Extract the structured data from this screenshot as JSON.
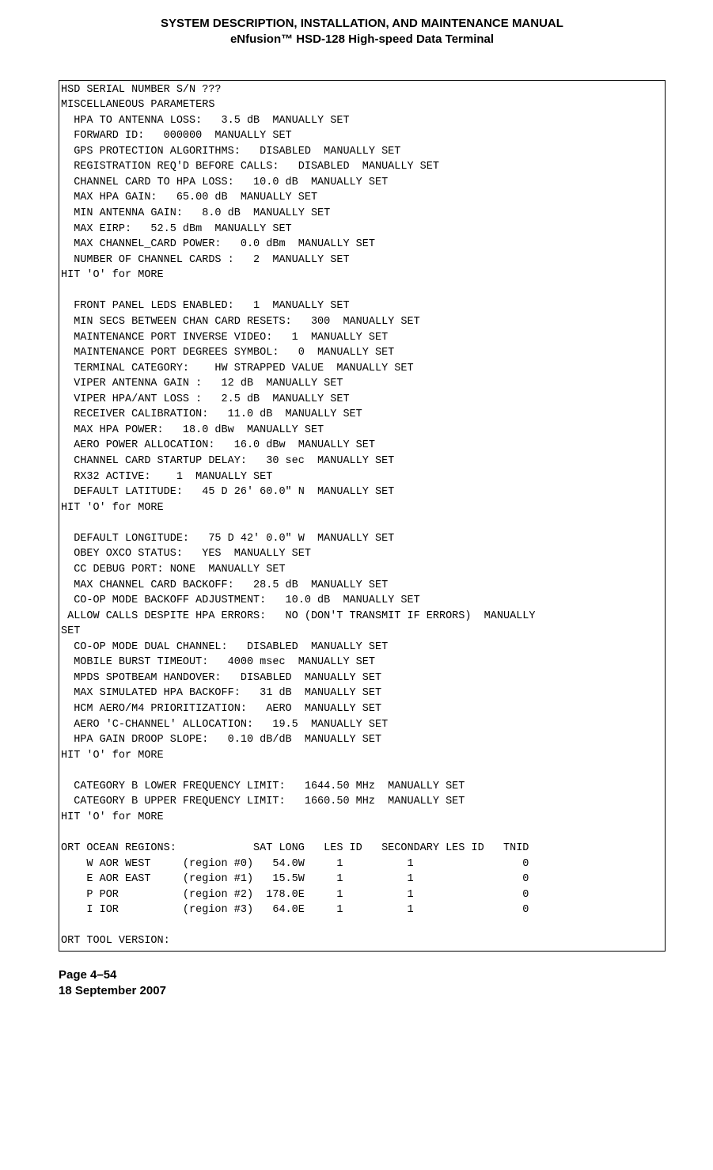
{
  "header": {
    "line1": "SYSTEM DESCRIPTION, INSTALLATION, AND MAINTENANCE MANUAL",
    "line2": "eNfusion™ HSD-128 High-speed Data Terminal"
  },
  "terminal": {
    "intro": [
      "HSD SERIAL NUMBER S/N ???",
      "MISCELLANEOUS PARAMETERS"
    ],
    "block1": [
      {
        "label": "HPA TO ANTENNA LOSS:",
        "value": "3.5 dB",
        "status": "MANUALLY SET"
      },
      {
        "label": "FORWARD ID:",
        "value": "000000",
        "status": "MANUALLY SET"
      },
      {
        "label": "GPS PROTECTION ALGORITHMS:",
        "value": "DISABLED",
        "status": "MANUALLY SET"
      },
      {
        "label": "REGISTRATION REQ'D BEFORE CALLS:",
        "value": "DISABLED",
        "status": "MANUALLY SET"
      },
      {
        "label": "CHANNEL CARD TO HPA LOSS:",
        "value": "10.0 dB",
        "status": "MANUALLY SET"
      },
      {
        "label": "MAX HPA GAIN:",
        "value": "65.00 dB",
        "status": "MANUALLY SET"
      },
      {
        "label": "MIN ANTENNA GAIN:",
        "value": "8.0 dB",
        "status": "MANUALLY SET"
      },
      {
        "label": "MAX EIRP:",
        "value": "52.5 dBm",
        "status": "MANUALLY SET"
      },
      {
        "label": "MAX CHANNEL_CARD POWER:",
        "value": "0.0 dBm",
        "status": "MANUALLY SET"
      },
      {
        "label": "NUMBER OF CHANNEL CARDS :",
        "value": "2",
        "status": "MANUALLY SET"
      }
    ],
    "more1": "HIT 'O' for MORE",
    "block2": [
      {
        "label": "FRONT PANEL LEDS ENABLED:",
        "value": "1",
        "status": "MANUALLY SET"
      },
      {
        "label": "MIN SECS BETWEEN CHAN CARD RESETS:",
        "value": "300",
        "status": "MANUALLY SET"
      },
      {
        "label": "MAINTENANCE PORT INVERSE VIDEO:",
        "value": "1",
        "status": "MANUALLY SET"
      },
      {
        "label": "MAINTENANCE PORT DEGREES SYMBOL:",
        "value": "0",
        "status": "MANUALLY SET"
      },
      {
        "label": "TERMINAL CATEGORY:",
        "value": "HW STRAPPED VALUE",
        "status": "MANUALLY SET",
        "gap": 4
      },
      {
        "label": "VIPER ANTENNA GAIN :",
        "value": "12 dB",
        "status": "MANUALLY SET"
      },
      {
        "label": "VIPER HPA/ANT LOSS :",
        "value": "2.5 dB",
        "status": "MANUALLY SET"
      },
      {
        "label": "RECEIVER CALIBRATION:",
        "value": "11.0 dB",
        "status": "MANUALLY SET"
      },
      {
        "label": "MAX HPA POWER:",
        "value": "18.0 dBw",
        "status": "MANUALLY SET"
      },
      {
        "label": "AERO POWER ALLOCATION:",
        "value": "16.0 dBw",
        "status": "MANUALLY SET"
      },
      {
        "label": "CHANNEL CARD STARTUP DELAY:",
        "value": "30 sec",
        "status": "MANUALLY SET"
      },
      {
        "label": "RX32 ACTIVE:",
        "value": "1",
        "status": "MANUALLY SET",
        "gap": 4
      },
      {
        "label": "DEFAULT LATITUDE:",
        "value": "45 D 26' 60.0\" N",
        "status": "MANUALLY SET"
      }
    ],
    "more2": "HIT 'O' for MORE",
    "block3": [
      {
        "label": "DEFAULT LONGITUDE:",
        "value": "75 D 42' 0.0\" W",
        "status": "MANUALLY SET"
      },
      {
        "label": "OBEY OXCO STATUS:",
        "value": "YES",
        "status": "MANUALLY SET"
      },
      {
        "label": "CC DEBUG PORT:",
        "value": "NONE",
        "status": "MANUALLY SET",
        "gap": 1
      },
      {
        "label": "MAX CHANNEL CARD BACKOFF:",
        "value": "28.5 dB",
        "status": "MANUALLY SET"
      },
      {
        "label": "CO-OP MODE BACKOFF ADJUSTMENT:",
        "value": "10.0 dB",
        "status": "MANUALLY SET"
      }
    ],
    "wrap_line": " ALLOW CALLS DESPITE HPA ERRORS:   NO (DON'T TRANSMIT IF ERRORS)  MANUALLY\nSET",
    "block4": [
      {
        "label": "CO-OP MODE DUAL CHANNEL:",
        "value": "DISABLED",
        "status": "MANUALLY SET"
      },
      {
        "label": "MOBILE BURST TIMEOUT:",
        "value": "4000 msec",
        "status": "MANUALLY SET"
      },
      {
        "label": "MPDS SPOTBEAM HANDOVER:",
        "value": "DISABLED",
        "status": "MANUALLY SET"
      },
      {
        "label": "MAX SIMULATED HPA BACKOFF:",
        "value": "31 dB",
        "status": "MANUALLY SET"
      },
      {
        "label": "HCM AERO/M4 PRIORITIZATION:",
        "value": "AERO",
        "status": "MANUALLY SET"
      },
      {
        "label": "AERO 'C-CHANNEL' ALLOCATION:",
        "value": "19.5",
        "status": "MANUALLY SET"
      },
      {
        "label": "HPA GAIN DROOP SLOPE:",
        "value": "0.10 dB/dB",
        "status": "MANUALLY SET"
      }
    ],
    "more3": "HIT 'O' for MORE",
    "block5": [
      {
        "label": "CATEGORY B LOWER FREQUENCY LIMIT:",
        "value": "1644.50 MHz",
        "status": "MANUALLY SET"
      },
      {
        "label": "CATEGORY B UPPER FREQUENCY LIMIT:",
        "value": "1660.50 MHz",
        "status": "MANUALLY SET"
      }
    ],
    "more4": "HIT 'O' for MORE",
    "regions": {
      "header": "ORT OCEAN REGIONS:            SAT LONG   LES ID   SECONDARY LES ID   TNID",
      "rows": [
        {
          "code": "W",
          "name": "AOR WEST",
          "region": "(region #0)",
          "sat": "54.0W",
          "les": "1",
          "sec": "1",
          "tnid": "0"
        },
        {
          "code": "E",
          "name": "AOR EAST",
          "region": "(region #1)",
          "sat": "15.5W",
          "les": "1",
          "sec": "1",
          "tnid": "0"
        },
        {
          "code": "P",
          "name": "POR",
          "region": "(region #2)",
          "sat": "178.0E",
          "les": "1",
          "sec": "1",
          "tnid": "0"
        },
        {
          "code": "I",
          "name": "IOR",
          "region": "(region #3)",
          "sat": "64.0E",
          "les": "1",
          "sec": "1",
          "tnid": "0"
        }
      ]
    },
    "tool_version": "ORT TOOL VERSION:"
  },
  "footer": {
    "page": "Page 4–54",
    "date": "18 September 2007"
  }
}
